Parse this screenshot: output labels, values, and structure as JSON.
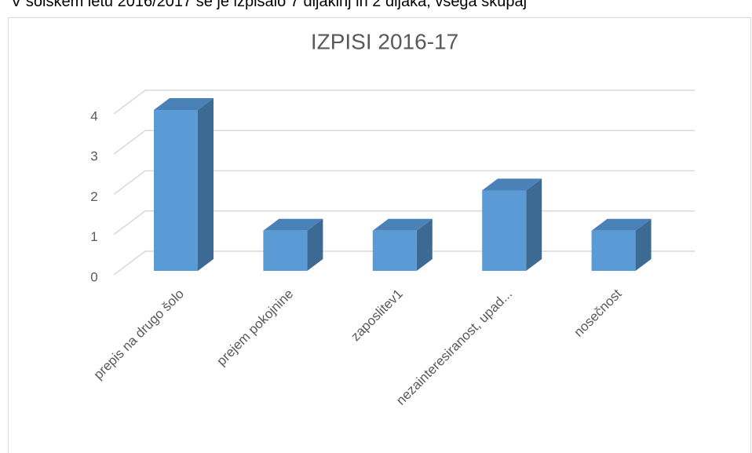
{
  "document_text": "V šolskem letu 2016/2017 se je izpisalo 7 dijakinj in 2 dijaka, vsega skupaj",
  "chart_data": {
    "type": "bar",
    "title": "IZPISI 2016-17",
    "categories": [
      "prepis na drugo šolo",
      "prejem pokojnine",
      "zaposlitev1",
      "nezainteresiranost, upad...",
      "nosečnost"
    ],
    "values": [
      4,
      1,
      1,
      2,
      1
    ],
    "color": "#5b9bd5",
    "ylim": [
      0,
      4
    ],
    "yticks": [
      0,
      1,
      2,
      3,
      4
    ],
    "grid": true
  }
}
